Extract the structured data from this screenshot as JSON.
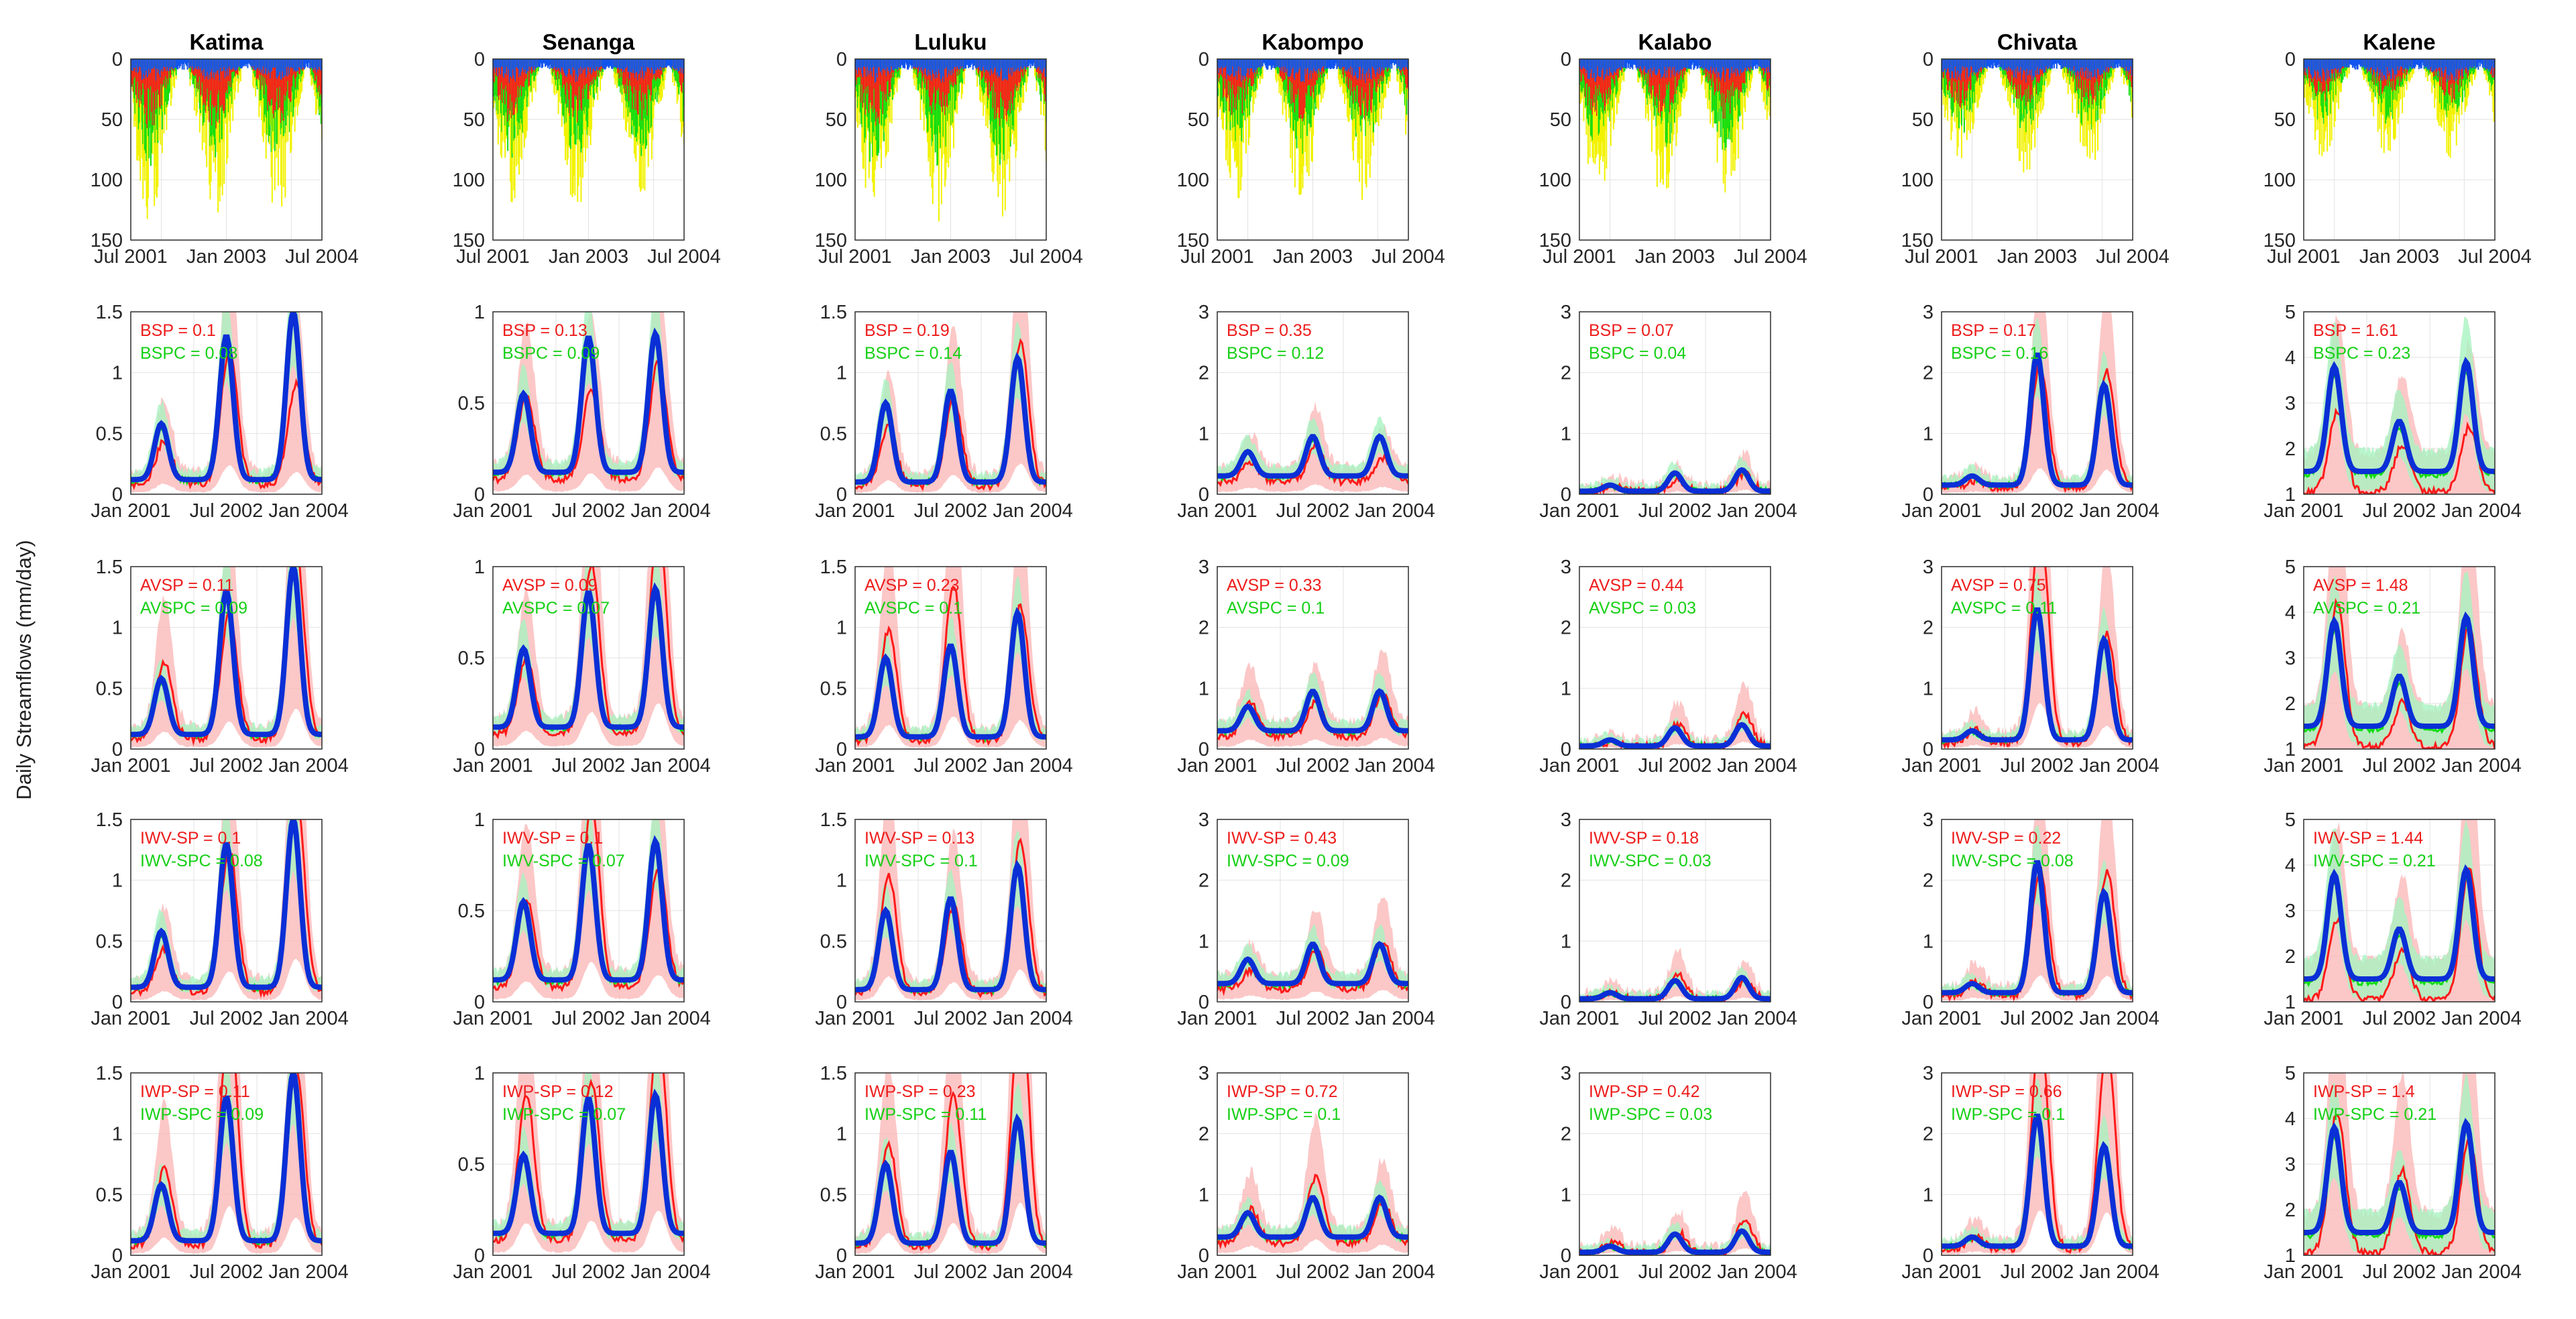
{
  "figure": {
    "ylabel": "Daily Streamflows (mm/day)",
    "colors": {
      "sp": "#ff1a1a",
      "sp_band": "#fbb4b4",
      "spc": "#11dd11",
      "spc_band": "#a8f2c0",
      "obs": "#0a2fd6",
      "precip_blue": "#1155ee",
      "precip_yellow": "#f2f200"
    }
  },
  "chart_data": {
    "type": "line",
    "rows": [
      {
        "kind": "precipitation",
        "sp_label": "",
        "spc_label": ""
      },
      {
        "kind": "streamflow",
        "sp_label": "BSP",
        "spc_label": "BSPC"
      },
      {
        "kind": "streamflow",
        "sp_label": "AVSP",
        "spc_label": "AVSPC"
      },
      {
        "kind": "streamflow",
        "sp_label": "IWV-SP",
        "spc_label": "IWV-SPC"
      },
      {
        "kind": "streamflow",
        "sp_label": "IWP-SP",
        "spc_label": "IWP-SPC"
      }
    ],
    "precip_axis": {
      "ylim": [
        0,
        150
      ],
      "reversed": true,
      "yticks": [
        "0",
        "50",
        "100",
        "150"
      ],
      "xticks": [
        "Jul 2001",
        "Jan 2003",
        "Jul 2004"
      ]
    },
    "flow_xticks": [
      "Jan 2001",
      "Jul 2002",
      "Jan 2004"
    ],
    "stations": [
      {
        "name": "Katima",
        "ylim": [
          0,
          1.5
        ],
        "yticks": [
          "0",
          "0.5",
          "1",
          "1.5"
        ],
        "peaks": [
          0.58,
          1.3,
          1.5
        ],
        "base": 0.12,
        "precip_depth": 45,
        "stats": [
          [
            "BSP = 0.1",
            "BSPC = 0.08"
          ],
          [
            "AVSP = 0.11",
            "AVSPC = 0.09"
          ],
          [
            "IWV-SP = 0.1",
            "IWV-SPC = 0.08"
          ],
          [
            "IWP-SP = 0.11",
            "IWP-SPC = 0.09"
          ]
        ]
      },
      {
        "name": "Senanga",
        "ylim": [
          0,
          1
        ],
        "yticks": [
          "0",
          "0.5",
          "1"
        ],
        "peaks": [
          0.55,
          0.86,
          0.88
        ],
        "base": 0.12,
        "precip_depth": 42,
        "stats": [
          [
            "BSP = 0.13",
            "BSPC = 0.09"
          ],
          [
            "AVSP = 0.09",
            "AVSPC = 0.07"
          ],
          [
            "IWV-SP = 0.1",
            "IWV-SPC = 0.07"
          ],
          [
            "IWP-SP = 0.12",
            "IWP-SPC = 0.07"
          ]
        ]
      },
      {
        "name": "Luluku",
        "ylim": [
          0,
          1.5
        ],
        "yticks": [
          "0",
          "0.5",
          "1",
          "1.5"
        ],
        "peaks": [
          0.75,
          0.85,
          1.12
        ],
        "base": 0.1,
        "precip_depth": 45,
        "stats": [
          [
            "BSP = 0.19",
            "BSPC = 0.14"
          ],
          [
            "AVSP = 0.23",
            "AVSPC = 0.1"
          ],
          [
            "IWV-SP = 0.13",
            "IWV-SPC = 0.1"
          ],
          [
            "IWP-SP = 0.23",
            "IWP-SPC = 0.11"
          ]
        ]
      },
      {
        "name": "Kabompo",
        "ylim": [
          0,
          3
        ],
        "yticks": [
          "0",
          "1",
          "2",
          "3"
        ],
        "peaks": [
          0.7,
          0.95,
          0.95
        ],
        "base": 0.3,
        "precip_depth": 40,
        "stats": [
          [
            "BSP = 0.35",
            "BSPC = 0.12"
          ],
          [
            "AVSP = 0.33",
            "AVSPC = 0.1"
          ],
          [
            "IWV-SP = 0.43",
            "IWV-SPC = 0.09"
          ],
          [
            "IWP-SP = 0.72",
            "IWP-SPC = 0.1"
          ]
        ]
      },
      {
        "name": "Kalabo",
        "ylim": [
          0,
          3
        ],
        "yticks": [
          "0",
          "1",
          "2",
          "3"
        ],
        "peaks": [
          0.15,
          0.35,
          0.4
        ],
        "base": 0.05,
        "precip_depth": 40,
        "stats": [
          [
            "BSP = 0.07",
            "BSPC = 0.04"
          ],
          [
            "AVSP = 0.44",
            "AVSPC = 0.03"
          ],
          [
            "IWV-SP = 0.18",
            "IWV-SPC = 0.03"
          ],
          [
            "IWP-SP = 0.42",
            "IWP-SPC = 0.03"
          ]
        ]
      },
      {
        "name": "Chivata",
        "ylim": [
          0,
          3
        ],
        "yticks": [
          "0",
          "1",
          "2",
          "3"
        ],
        "peaks": [
          0.3,
          2.3,
          1.8
        ],
        "base": 0.15,
        "precip_depth": 32,
        "stats": [
          [
            "BSP = 0.17",
            "BSPC = 0.16"
          ],
          [
            "AVSP = 0.75",
            "AVSPC = 0.11"
          ],
          [
            "IWV-SP = 0.22",
            "IWV-SPC = 0.08"
          ],
          [
            "IWP-SP = 0.66",
            "IWP-SPC = 0.1"
          ]
        ]
      },
      {
        "name": "Kalene",
        "ylim": [
          1,
          5
        ],
        "yticks": [
          "1",
          "2",
          "3",
          "4",
          "5"
        ],
        "peaks": [
          3.8,
          2.6,
          3.9
        ],
        "base": 1.5,
        "precip_depth": 28,
        "stats": [
          [
            "BSP = 1.61",
            "BSPC = 0.23"
          ],
          [
            "AVSP = 1.48",
            "AVSPC = 0.21"
          ],
          [
            "IWV-SP = 1.44",
            "IWV-SPC = 0.21"
          ],
          [
            "IWP-SP = 1.4",
            "IWP-SPC = 0.21"
          ]
        ]
      }
    ]
  }
}
